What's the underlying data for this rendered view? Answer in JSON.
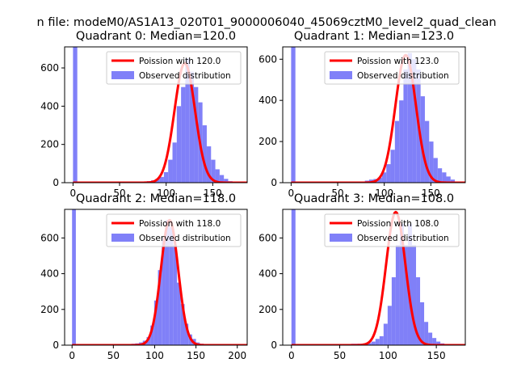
{
  "figure": {
    "suptitle": "n file: modeM0/AS1A13_020T01_9000006040_45069cztM0_level2_quad_clean"
  },
  "colors": {
    "hist": "#8080f8",
    "model": "#ff0000",
    "spike": "#8080f8"
  },
  "chart_data": [
    {
      "type": "bar",
      "title": "Quadrant 0: Median=120.0",
      "xlim": [
        -9,
        187
      ],
      "ylim": [
        0,
        710
      ],
      "xticks": [
        0,
        50,
        100,
        150
      ],
      "yticks": [
        0,
        200,
        400,
        600
      ],
      "legend": [
        "Poission with 120.0",
        "Observed distribution"
      ],
      "legend_placement": "top-right",
      "spike": {
        "x": 0,
        "value": 710
      },
      "bin_width": 4.6,
      "hist_start": 70,
      "hist_values": [
        2,
        5,
        8,
        12,
        20,
        30,
        55,
        120,
        210,
        400,
        500,
        650,
        580,
        500,
        420,
        300,
        190,
        120,
        70,
        40,
        20,
        8,
        3
      ],
      "poisson": {
        "mean": 120,
        "sigma": 11,
        "peak": 625
      }
    },
    {
      "type": "bar",
      "title": "Quadrant 1: Median=123.0",
      "xlim": [
        -9,
        187
      ],
      "ylim": [
        0,
        660
      ],
      "xticks": [
        0,
        50,
        100,
        150
      ],
      "yticks": [
        0,
        200,
        400,
        600
      ],
      "legend": [
        "Poission with 123.0",
        "Observed distribution"
      ],
      "legend_placement": "top-right",
      "spike": {
        "x": 0,
        "value": 660
      },
      "bin_width": 4.6,
      "hist_start": 70,
      "hist_values": [
        2,
        5,
        10,
        15,
        18,
        25,
        50,
        90,
        160,
        300,
        400,
        550,
        630,
        600,
        550,
        420,
        300,
        200,
        120,
        70,
        50,
        30,
        15,
        5
      ],
      "poisson": {
        "mean": 123,
        "sigma": 11,
        "peak": 620
      }
    },
    {
      "type": "bar",
      "title": "Quadrant 2: Median=118.0",
      "xlim": [
        -9,
        212
      ],
      "ylim": [
        0,
        760
      ],
      "xticks": [
        0,
        50,
        100,
        150,
        200
      ],
      "yticks": [
        0,
        200,
        400,
        600
      ],
      "legend": [
        "Poission with 118.0",
        "Observed distribution"
      ],
      "legend_placement": "top-right",
      "spike": {
        "x": 0,
        "value": 760
      },
      "bin_width": 4.6,
      "hist_start": 58,
      "hist_values": [
        2,
        4,
        6,
        8,
        10,
        15,
        25,
        45,
        110,
        250,
        420,
        600,
        700,
        660,
        560,
        350,
        230,
        120,
        60,
        35,
        15,
        8,
        5,
        3,
        2,
        2,
        1
      ],
      "poisson": {
        "mean": 118,
        "sigma": 10.5,
        "peak": 700
      }
    },
    {
      "type": "bar",
      "title": "Quadrant 3: Median=108.0",
      "xlim": [
        -9,
        180
      ],
      "ylim": [
        0,
        760
      ],
      "xticks": [
        0,
        50,
        100,
        150
      ],
      "yticks": [
        0,
        200,
        400,
        600
      ],
      "legend": [
        "Poission with 108.0",
        "Observed distribution"
      ],
      "legend_placement": "top-right",
      "spike": {
        "x": 0,
        "value": 760
      },
      "bin_width": 4.2,
      "hist_start": 45,
      "hist_values": [
        1,
        2,
        3,
        5,
        8,
        8,
        8,
        10,
        12,
        20,
        35,
        50,
        120,
        220,
        380,
        560,
        680,
        560,
        680,
        560,
        380,
        240,
        130,
        70,
        40,
        20,
        10,
        5,
        3,
        2
      ],
      "poisson": {
        "mean": 108,
        "sigma": 10,
        "peak": 745
      }
    }
  ]
}
